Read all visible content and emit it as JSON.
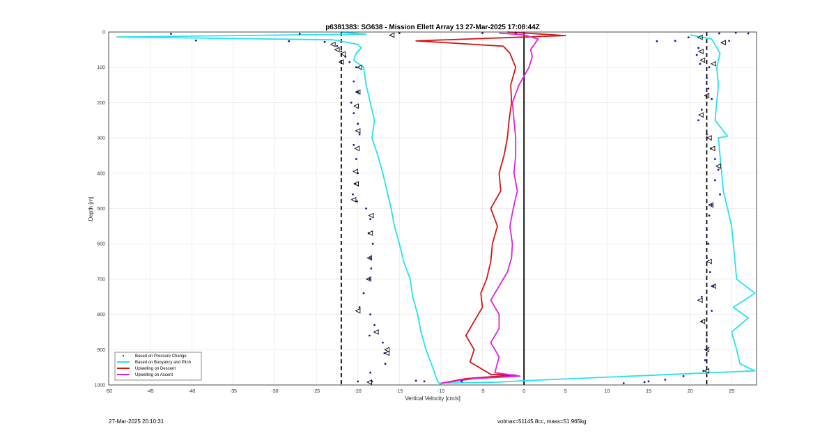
{
  "footer": {
    "timestamp": "27-Mar-2025 20:10:31",
    "mass_info": "volmax=51145.8cc, mass=51.965kg"
  },
  "colors": {
    "pressure": "#0b18a6",
    "buoyancy": "#22e3ee",
    "descent": "#d61515",
    "ascent": "#e020e0",
    "grid": "#e3e3e3",
    "triangle_edge": "#000000",
    "highlight": "#ff3030"
  },
  "chart_data": {
    "type": "line",
    "title": "p6381383: SG638 - Mission Ellett Array 13 27-Mar-2025 17:08:44Z",
    "xlabel": "Vertical Velocity [cm/s]",
    "ylabel": "Depth [m]",
    "xlim": [
      -50,
      28
    ],
    "ylim": [
      0,
      1000
    ],
    "y_reversed": true,
    "grid": true,
    "xticks": [
      -50,
      -45,
      -40,
      -35,
      -30,
      -25,
      -20,
      -15,
      -10,
      -5,
      0,
      5,
      10,
      15,
      20,
      25
    ],
    "yticks": [
      0,
      100,
      200,
      300,
      400,
      500,
      600,
      700,
      800,
      900,
      1000
    ],
    "reference_lines": [
      {
        "x": -22,
        "style": "dashed"
      },
      {
        "x": 0,
        "style": "solid"
      },
      {
        "x": 22,
        "style": "dashed"
      }
    ],
    "legend_position": "bottom-left",
    "legend": [
      "Based on Pressure Change",
      "Based on Buoyancy and Pitch",
      "Upwelling on Descent",
      "Upwelling on Ascent"
    ],
    "series": [
      {
        "name": "Based on Buoyancy and Pitch",
        "kind": "line",
        "color": "#22e3ee",
        "points": [
          [
            -22,
            0
          ],
          [
            -19,
            6
          ],
          [
            -49,
            14
          ],
          [
            -23,
            22
          ],
          [
            -20,
            35
          ],
          [
            -19.6,
            45
          ],
          [
            -20.2,
            60
          ],
          [
            -20.5,
            80
          ],
          [
            -19.3,
            100
          ],
          [
            -19,
            150
          ],
          [
            -18.5,
            200
          ],
          [
            -18,
            250
          ],
          [
            -18.3,
            300
          ],
          [
            -17.6,
            350
          ],
          [
            -17,
            400
          ],
          [
            -16.5,
            450
          ],
          [
            -16,
            500
          ],
          [
            -15.6,
            550
          ],
          [
            -15,
            600
          ],
          [
            -14.5,
            650
          ],
          [
            -13.7,
            700
          ],
          [
            -13.4,
            750
          ],
          [
            -12.8,
            800
          ],
          [
            -12.4,
            850
          ],
          [
            -11.8,
            900
          ],
          [
            -11,
            950
          ],
          [
            -10.4,
            990
          ],
          [
            -10,
            1000
          ]
        ]
      },
      {
        "name": "Based on Buoyancy and Pitch",
        "kind": "line",
        "color": "#22e3ee",
        "points": [
          [
            -10.2,
            995
          ],
          [
            -3,
            992
          ],
          [
            0,
            988
          ],
          [
            27.8,
            960
          ],
          [
            26,
            940
          ],
          [
            25.6,
            900
          ],
          [
            25,
            850
          ],
          [
            27,
            810
          ],
          [
            25.2,
            780
          ],
          [
            27.8,
            740
          ],
          [
            25.6,
            700
          ],
          [
            25.4,
            650
          ],
          [
            25.2,
            600
          ],
          [
            25,
            550
          ],
          [
            24.5,
            500
          ],
          [
            24,
            450
          ],
          [
            23.8,
            400
          ],
          [
            23.6,
            350
          ],
          [
            23.4,
            300
          ],
          [
            24.5,
            295
          ],
          [
            23,
            250
          ],
          [
            23.2,
            200
          ],
          [
            23.4,
            150
          ],
          [
            23.2,
            100
          ],
          [
            23.6,
            60
          ],
          [
            23.1,
            40
          ],
          [
            22.6,
            20
          ],
          [
            20,
            8
          ]
        ]
      },
      {
        "name": "Upwelling on Descent",
        "kind": "line",
        "color": "#d61515",
        "points": [
          [
            -10,
            995
          ],
          [
            -7,
            982
          ],
          [
            -3,
            975
          ],
          [
            -1,
            972
          ],
          [
            -4,
            970
          ],
          [
            -6.5,
            935
          ],
          [
            -6,
            900
          ],
          [
            -7,
            860
          ],
          [
            -6,
            820
          ],
          [
            -5,
            780
          ],
          [
            -5.2,
            740
          ],
          [
            -4.5,
            700
          ],
          [
            -4,
            650
          ],
          [
            -3.8,
            600
          ],
          [
            -3.2,
            550
          ],
          [
            -4,
            500
          ],
          [
            -2.8,
            450
          ],
          [
            -3,
            400
          ],
          [
            -2.4,
            350
          ],
          [
            -2,
            300
          ],
          [
            -1.8,
            250
          ],
          [
            -1.5,
            200
          ],
          [
            -1.6,
            150
          ],
          [
            -1,
            100
          ],
          [
            -1.7,
            60
          ],
          [
            -2.5,
            40
          ],
          [
            -13,
            25
          ],
          [
            5,
            10
          ],
          [
            -2,
            0
          ]
        ]
      },
      {
        "name": "Upwelling on Ascent",
        "kind": "line",
        "color": "#e020e0",
        "points": [
          [
            -10,
            995
          ],
          [
            -6,
            982
          ],
          [
            -0.5,
            975
          ],
          [
            -3.5,
            965
          ],
          [
            -3,
            920
          ],
          [
            -4,
            880
          ],
          [
            -3,
            840
          ],
          [
            -3,
            800
          ],
          [
            -4,
            760
          ],
          [
            -3,
            720
          ],
          [
            -2,
            680
          ],
          [
            -1.5,
            640
          ],
          [
            -1.4,
            600
          ],
          [
            -1.7,
            550
          ],
          [
            -1.3,
            500
          ],
          [
            -0.8,
            450
          ],
          [
            -1.2,
            400
          ],
          [
            -1,
            350
          ],
          [
            -1,
            300
          ],
          [
            -1.2,
            250
          ],
          [
            -1.4,
            200
          ],
          [
            -0.6,
            150
          ],
          [
            0.6,
            100
          ],
          [
            1,
            70
          ],
          [
            0.8,
            50
          ],
          [
            1.7,
            20
          ],
          [
            0,
            8
          ],
          [
            -3,
            3
          ]
        ]
      }
    ],
    "scatter": [
      {
        "name": "Based on Pressure Change",
        "marker": "dot",
        "points": [
          [
            -42.5,
            5
          ],
          [
            -27,
            5
          ],
          [
            -39.5,
            24
          ],
          [
            -28.3,
            26
          ],
          [
            -24,
            28
          ],
          [
            -22.5,
            40
          ],
          [
            -22,
            55
          ],
          [
            -21.5,
            70
          ],
          [
            -21,
            85
          ],
          [
            -20.2,
            100
          ],
          [
            -20.5,
            140
          ],
          [
            -20,
            170
          ],
          [
            -20.8,
            200
          ],
          [
            -20.5,
            230
          ],
          [
            -20,
            260
          ],
          [
            -19.8,
            290
          ],
          [
            -20.5,
            320
          ],
          [
            -20.2,
            360
          ],
          [
            -20,
            400
          ],
          [
            -20.3,
            430
          ],
          [
            -20.6,
            460
          ],
          [
            -20.1,
            480
          ],
          [
            -19,
            500
          ],
          [
            -18.5,
            530
          ],
          [
            -18.7,
            570
          ],
          [
            -18.2,
            600
          ],
          [
            -18.5,
            640
          ],
          [
            -18.4,
            670
          ],
          [
            -18.6,
            700
          ],
          [
            -19.3,
            740
          ],
          [
            -19.8,
            780
          ],
          [
            -18.5,
            800
          ],
          [
            -18,
            830
          ],
          [
            -18.6,
            860
          ],
          [
            -17,
            880
          ],
          [
            -16.8,
            910
          ],
          [
            -16.7,
            940
          ],
          [
            -18.5,
            965
          ],
          [
            -18.3,
            990
          ],
          [
            -12,
            990
          ],
          [
            -20,
            990
          ],
          [
            -13,
            988
          ],
          [
            -7.5,
            990
          ],
          [
            -15,
            3
          ],
          [
            -5,
            3
          ],
          [
            -1,
            3
          ],
          [
            19.8,
            15
          ],
          [
            24.7,
            25
          ],
          [
            21,
            45
          ],
          [
            20.8,
            65
          ],
          [
            21.2,
            90
          ],
          [
            22.3,
            100
          ],
          [
            22,
            130
          ],
          [
            22.2,
            160
          ],
          [
            22.6,
            190
          ],
          [
            21.4,
            220
          ],
          [
            21,
            250
          ],
          [
            22,
            290
          ],
          [
            22.5,
            330
          ],
          [
            23,
            360
          ],
          [
            23.4,
            390
          ],
          [
            23,
            420
          ],
          [
            23.6,
            460
          ],
          [
            22.6,
            490
          ],
          [
            22.3,
            520
          ],
          [
            22,
            560
          ],
          [
            22.2,
            600
          ],
          [
            22,
            640
          ],
          [
            22.4,
            680
          ],
          [
            22.8,
            720
          ],
          [
            21.4,
            750
          ],
          [
            22.6,
            790
          ],
          [
            21.4,
            820
          ],
          [
            22,
            860
          ],
          [
            22,
            900
          ],
          [
            21.8,
            930
          ],
          [
            21.6,
            960
          ],
          [
            19.2,
            975
          ],
          [
            17,
            985
          ],
          [
            12,
            995
          ],
          [
            14.5,
            992
          ],
          [
            15,
            990
          ],
          [
            23.5,
            4
          ],
          [
            25.5,
            2
          ],
          [
            27,
            4
          ],
          [
            16,
            26
          ],
          [
            18.2,
            25
          ]
        ]
      },
      {
        "name": "Based on Pressure Change",
        "marker": "triangle",
        "points": [
          [
            -15.9,
            9
          ],
          [
            -23,
            35
          ],
          [
            -22.5,
            50
          ],
          [
            -21.8,
            62
          ],
          [
            -22,
            85
          ],
          [
            -19.8,
            100
          ],
          [
            -20,
            170
          ],
          [
            -20.2,
            210
          ],
          [
            -20,
            280
          ],
          [
            -20.1,
            330
          ],
          [
            -20.3,
            395
          ],
          [
            -20.2,
            430
          ],
          [
            -20.5,
            475
          ],
          [
            -18.4,
            520
          ],
          [
            -18.5,
            570
          ],
          [
            -18.6,
            640
          ],
          [
            -18.7,
            700
          ],
          [
            -20,
            790
          ],
          [
            -17.8,
            850
          ],
          [
            -16.5,
            900
          ],
          [
            -16.5,
            910
          ],
          [
            -18.6,
            992
          ],
          [
            21.2,
            15
          ],
          [
            24,
            30
          ],
          [
            21.3,
            55
          ],
          [
            21.5,
            80
          ],
          [
            22.8,
            90
          ],
          [
            22,
            180
          ],
          [
            21.3,
            235
          ],
          [
            22.3,
            300
          ],
          [
            22.7,
            330
          ],
          [
            23.4,
            380
          ],
          [
            22.5,
            490
          ],
          [
            22.3,
            650
          ],
          [
            22.8,
            720
          ],
          [
            21.2,
            760
          ],
          [
            21.5,
            820
          ],
          [
            22,
            900
          ],
          [
            22,
            960
          ]
        ]
      }
    ]
  }
}
